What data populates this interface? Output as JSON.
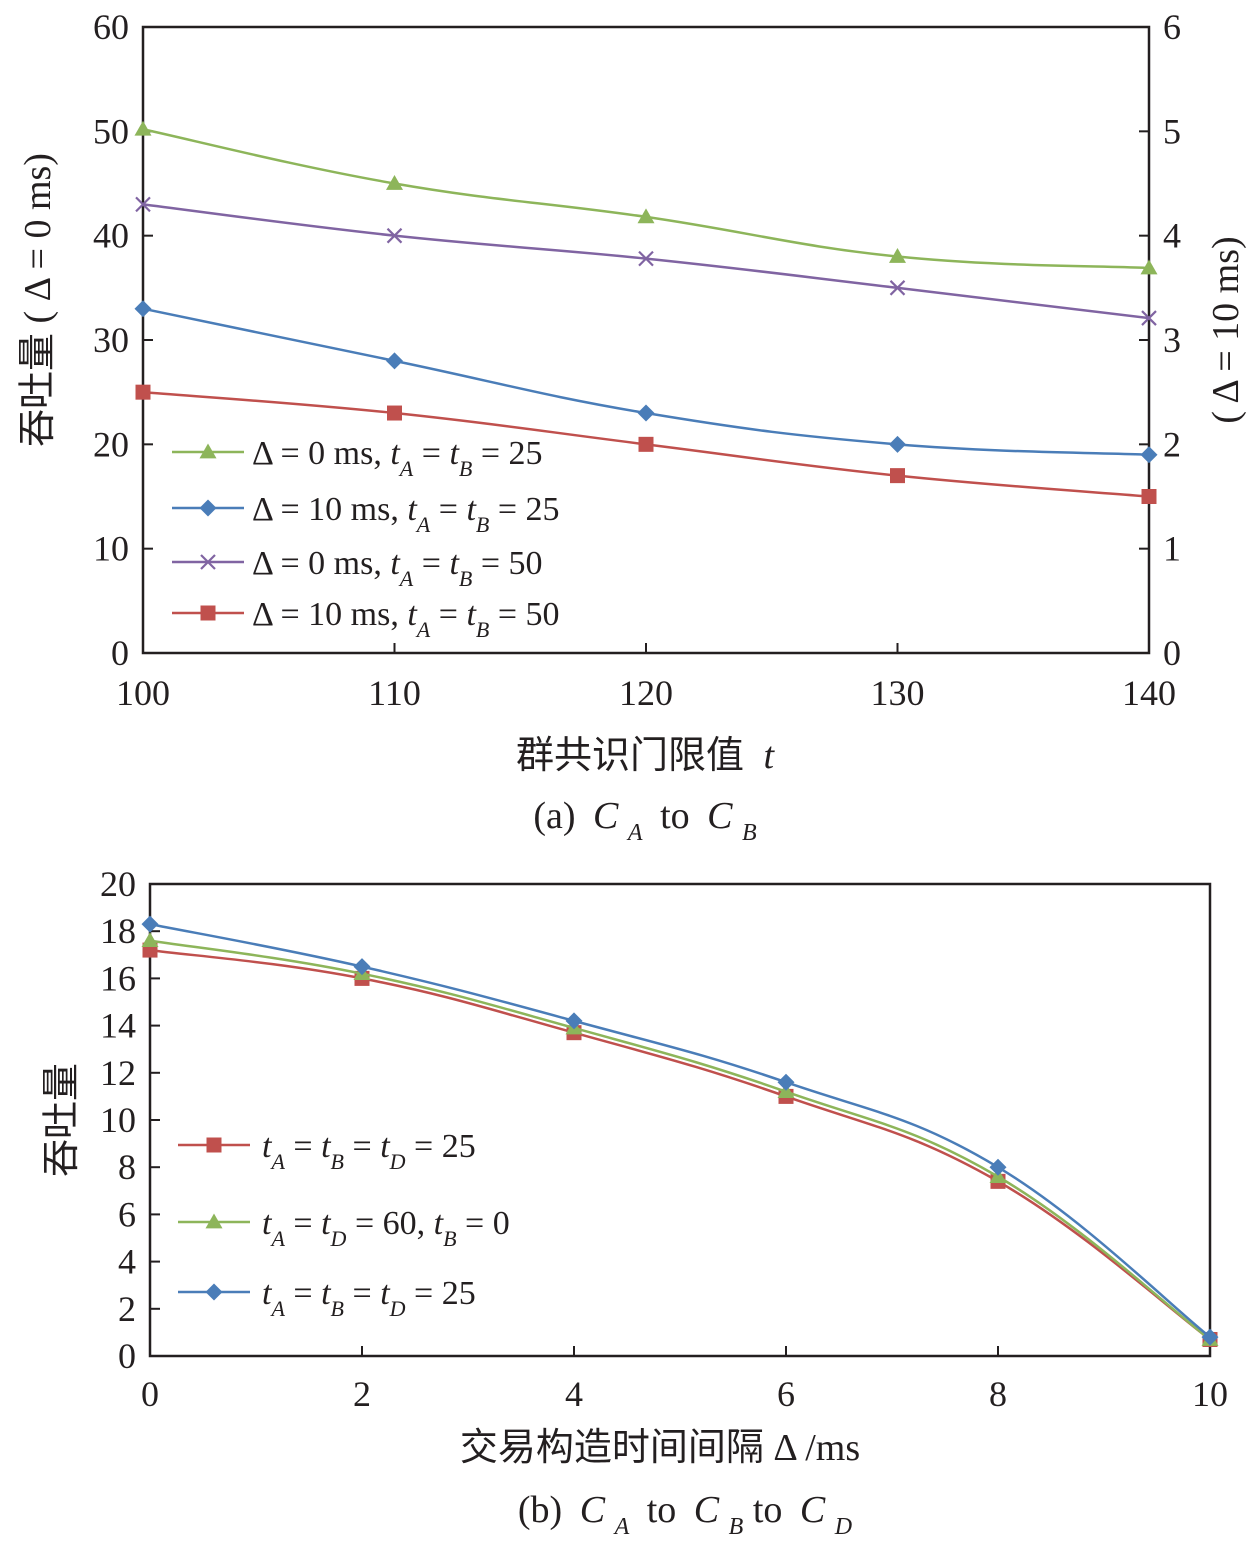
{
  "chart_data": [
    {
      "type": "line",
      "caption": "(a) C_A to C_B",
      "xlabel": "群共识门限值 t",
      "ylabel": "吞吐量 ( Δ = 0 ms)",
      "ylabel_right": "( Δ = 10 ms)",
      "x": [
        100,
        110,
        120,
        130,
        140
      ],
      "xlim": [
        100,
        140
      ],
      "ylim": [
        0,
        60
      ],
      "ylim_right": [
        0,
        6
      ],
      "yticks": [
        0,
        10,
        20,
        30,
        40,
        50,
        60
      ],
      "yticks_right": [
        0,
        1,
        2,
        3,
        4,
        5,
        6
      ],
      "legend_position": "lower-left",
      "series": [
        {
          "name": "Δ = 0 ms, t_A = t_B = 25",
          "color": "#8db55a",
          "marker": "triangle",
          "axis": "left",
          "values": [
            50.2,
            45,
            41.8,
            38,
            36.9
          ]
        },
        {
          "name": "Δ = 10 ms, t_A = t_B = 25",
          "color": "#4a7db8",
          "marker": "diamond",
          "axis": "right",
          "values": [
            3.3,
            2.8,
            2.3,
            2.0,
            1.9
          ]
        },
        {
          "name": "Δ = 0 ms, t_A = t_B = 50",
          "color": "#8064a2",
          "marker": "x",
          "axis": "left",
          "values": [
            43,
            40,
            37.8,
            35,
            32.1
          ]
        },
        {
          "name": "Δ = 10 ms, t_A = t_B = 50",
          "color": "#c0504d",
          "marker": "square",
          "axis": "right",
          "values": [
            2.5,
            2.3,
            2.0,
            1.7,
            1.5
          ]
        }
      ]
    },
    {
      "type": "line",
      "caption": "(b) C_A to C_B to C_D",
      "xlabel": "交易构造时间间隔 Δ /ms",
      "ylabel": "吞吐量",
      "x": [
        0,
        2,
        4,
        6,
        8,
        10
      ],
      "xlim": [
        0,
        10
      ],
      "ylim": [
        0,
        20
      ],
      "yticks": [
        0,
        2,
        4,
        6,
        8,
        10,
        12,
        14,
        16,
        18,
        20
      ],
      "legend_position": "lower-left",
      "series": [
        {
          "name": "t_A = t_B = t_D = 25",
          "color": "#c0504d",
          "marker": "square",
          "values": [
            17.2,
            16.0,
            13.7,
            11.0,
            7.4,
            0.7
          ]
        },
        {
          "name": "t_A = t_D = 60, t_B = 0",
          "color": "#8db55a",
          "marker": "triangle",
          "values": [
            17.6,
            16.2,
            13.9,
            11.2,
            7.6,
            0.7
          ]
        },
        {
          "name": "t_A = t_B = t_D = 25",
          "color": "#4a7db8",
          "marker": "diamond",
          "values": [
            18.3,
            16.5,
            14.2,
            11.6,
            8.0,
            0.8
          ]
        }
      ]
    }
  ],
  "text": {
    "a_xlabel": "群共识门限值",
    "a_xlabel_var": "t",
    "a_ylabel": "吞吐量 ( Δ = 0 ms)",
    "a_ylabel_right": "( Δ = 10 ms)",
    "a_cap_pre": "(a)",
    "a_cap_to": "to",
    "b_xlabel": "交易构造时间间隔  Δ /ms",
    "b_ylabel": "吞吐量",
    "b_cap_pre": "(b)",
    "b_cap_to1": "to",
    "b_cap_to2": "to",
    "C": "C",
    "sub_A": "A",
    "sub_B": "B",
    "sub_D": "D"
  }
}
